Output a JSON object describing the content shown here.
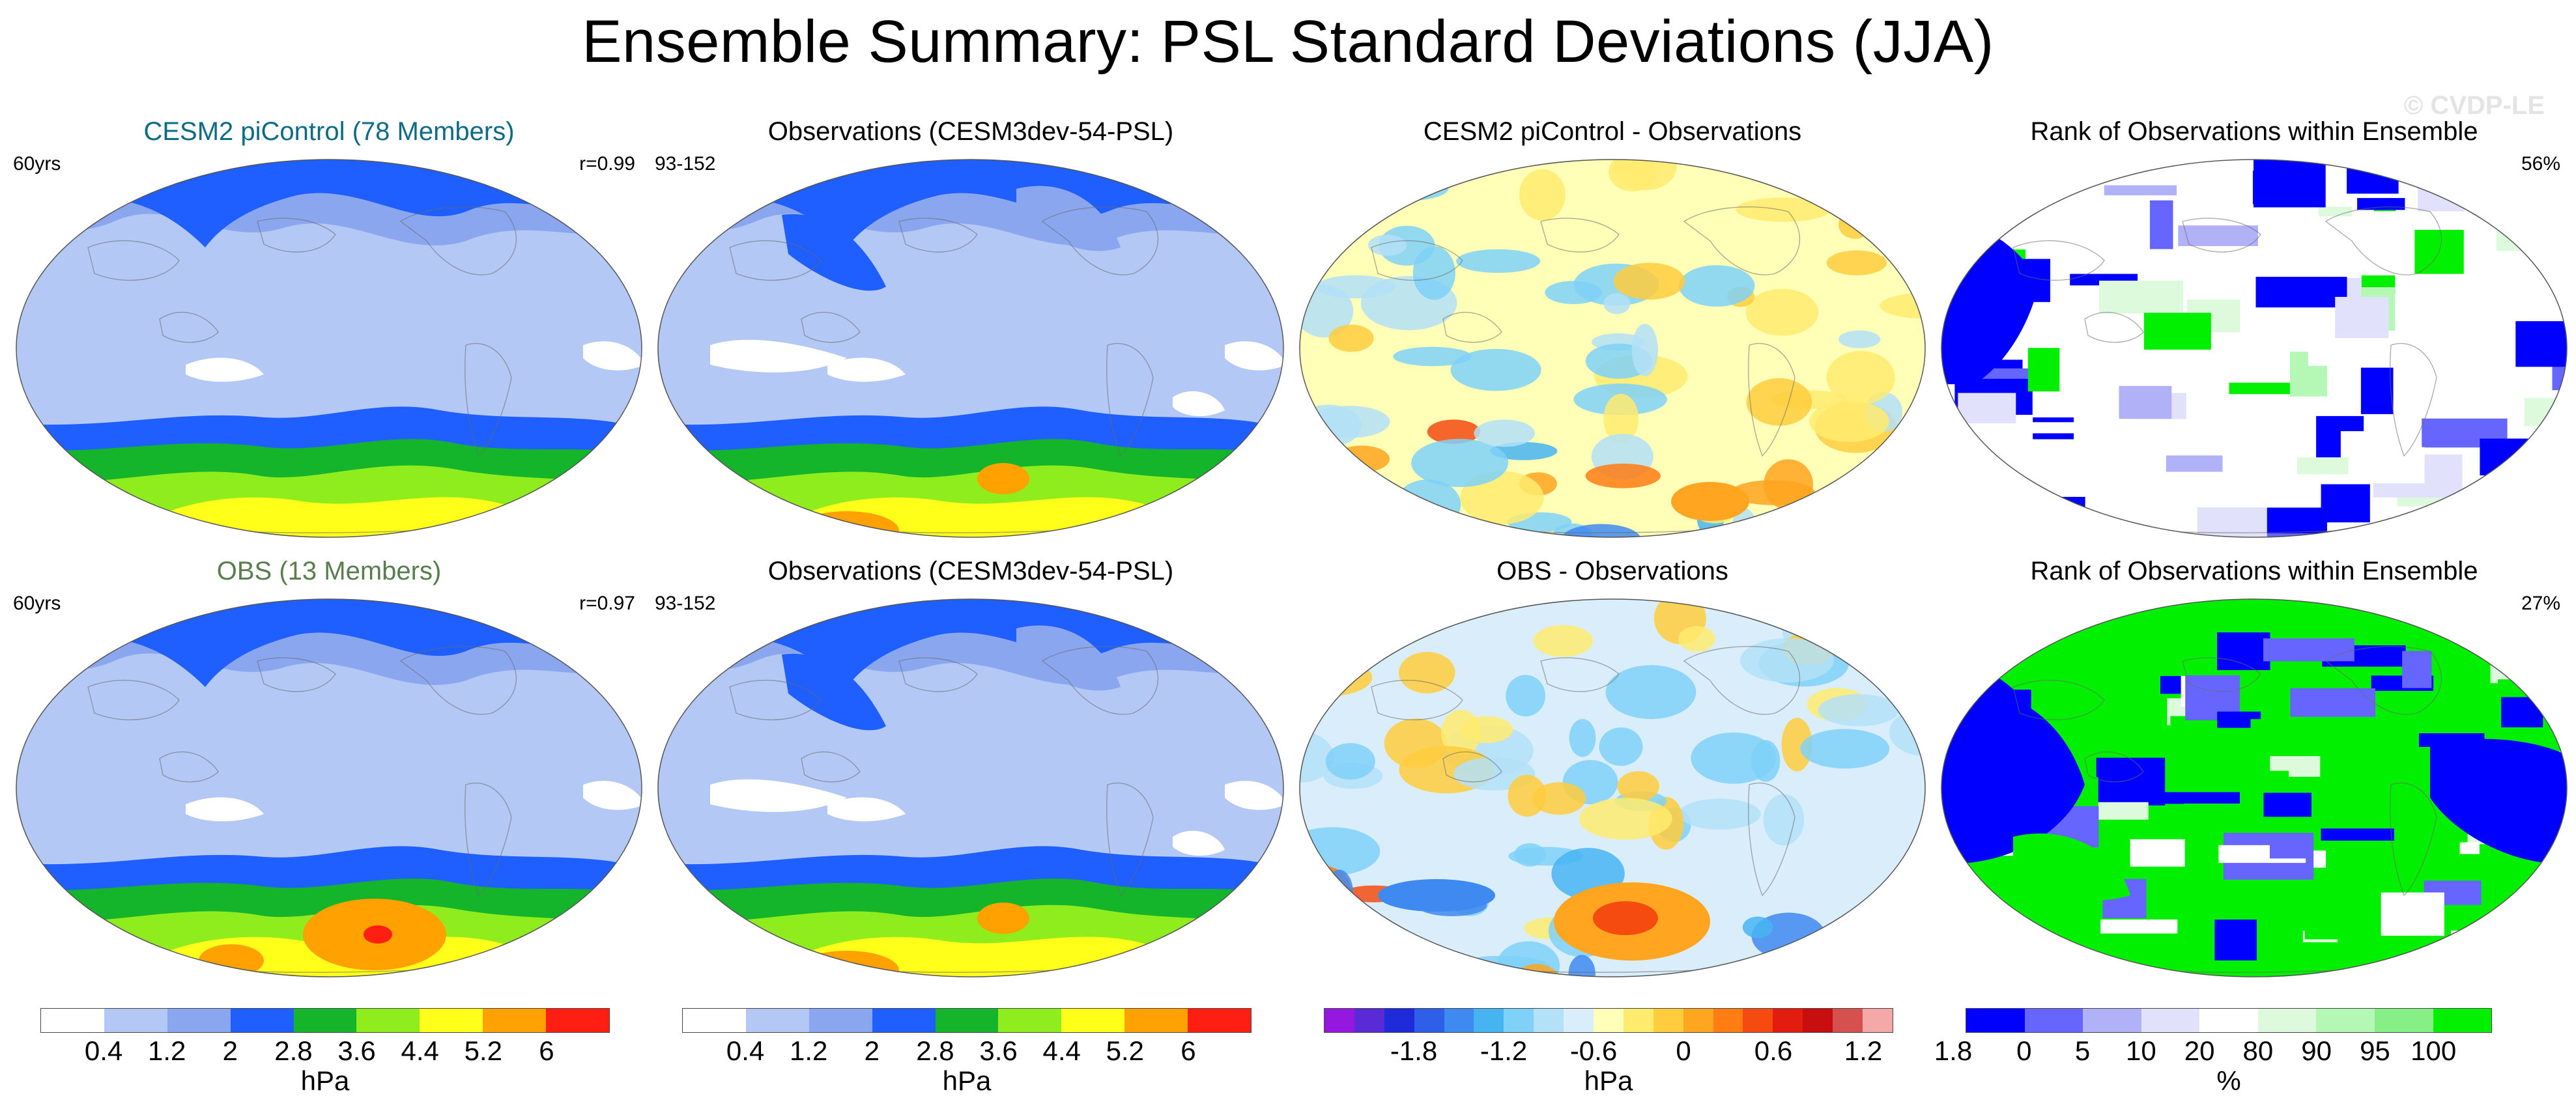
{
  "title": "Ensemble Summary: PSL Standard Deviations (JJA)",
  "watermark": "© CVDP-LE",
  "rows": [
    {
      "panels": [
        {
          "title": "CESM2 piControl (78 Members)",
          "title_color": "#0d6b86",
          "left": "60yrs",
          "right": "r=0.99",
          "kind": "std",
          "level": 1
        },
        {
          "title": "Observations (CESM3dev-54-PSL)",
          "title_color": "#000000",
          "left": "93-152",
          "right": "",
          "kind": "std",
          "level": 2
        },
        {
          "title": "CESM2 piControl - Observations",
          "title_color": "#000000",
          "left": "",
          "right": "",
          "kind": "diff",
          "level": 1
        },
        {
          "title": "Rank of Observations within Ensemble",
          "title_color": "#000000",
          "left": "",
          "right": "56%",
          "kind": "rank",
          "level": 1
        }
      ]
    },
    {
      "panels": [
        {
          "title": "OBS (13 Members)",
          "title_color": "#5a7d4f",
          "left": "60yrs",
          "right": "r=0.97",
          "kind": "std",
          "level": 3
        },
        {
          "title": "Observations (CESM3dev-54-PSL)",
          "title_color": "#000000",
          "left": "93-152",
          "right": "",
          "kind": "std",
          "level": 2
        },
        {
          "title": "OBS - Observations",
          "title_color": "#000000",
          "left": "",
          "right": "",
          "kind": "diff",
          "level": 2
        },
        {
          "title": "Rank of Observations within Ensemble",
          "title_color": "#000000",
          "left": "",
          "right": "27%",
          "kind": "rank",
          "level": 2
        }
      ]
    }
  ],
  "chart_data": {
    "type": "heatmap",
    "colorbars": [
      {
        "name": "std",
        "units": "hPa",
        "colors": [
          "#ffffff",
          "#b4c8f5",
          "#8aa6ef",
          "#1f5fff",
          "#14b52a",
          "#8fed1e",
          "#ffff1a",
          "#ffa100",
          "#ff1f12"
        ],
        "tick_labels": [
          "0.4",
          "1.2",
          "2",
          "2.8",
          "3.6",
          "4.4",
          "5.2",
          "6"
        ]
      },
      {
        "name": "std",
        "units": "hPa",
        "colors": [
          "#ffffff",
          "#b4c8f5",
          "#8aa6ef",
          "#1f5fff",
          "#14b52a",
          "#8fed1e",
          "#ffff1a",
          "#ffa100",
          "#ff1f12"
        ],
        "tick_labels": [
          "0.4",
          "1.2",
          "2",
          "2.8",
          "3.6",
          "4.4",
          "5.2",
          "6"
        ]
      },
      {
        "name": "diff",
        "units": "hPa",
        "colors": [
          "#9418e0",
          "#5a2ad6",
          "#1f2bd9",
          "#2d5fe8",
          "#3f8af0",
          "#47b4f2",
          "#7fd1f8",
          "#b3e1f7",
          "#d9eefa",
          "#ffffb8",
          "#ffeb6e",
          "#ffcc3d",
          "#ffa51f",
          "#ff7d12",
          "#f54b10",
          "#e21c0f",
          "#c80f0f",
          "#d65050",
          "#f4a8a8"
        ],
        "tick_labels": [
          "-1.8",
          "-1.2",
          "-0.6",
          "0",
          "0.6",
          "1.2",
          "1.8"
        ]
      },
      {
        "name": "rank",
        "units": "%",
        "colors": [
          "#0000ff",
          "#6666ff",
          "#b1b1f8",
          "#e1e1fb",
          "#ffffff",
          "#ddfadd",
          "#b5f7b5",
          "#86f086",
          "#00f000"
        ],
        "tick_labels": [
          "0",
          "5",
          "10",
          "20",
          "80",
          "90",
          "95",
          "100"
        ]
      }
    ]
  }
}
